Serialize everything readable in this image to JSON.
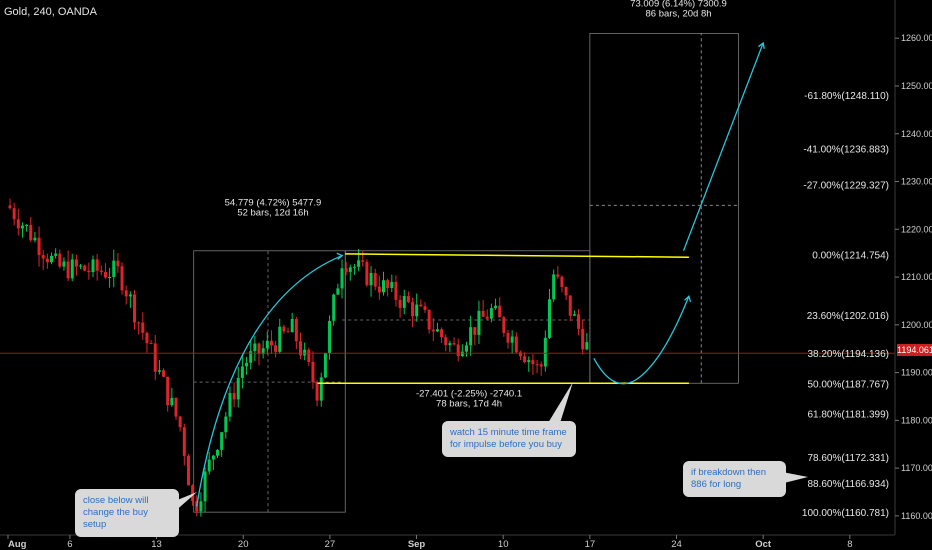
{
  "symbol": "Gold, 240, OANDA",
  "last_price": "1194.061",
  "colors": {
    "background": "#000000",
    "up": "#00c853",
    "down": "#e0232a",
    "fib_lines": "#ffff00",
    "projection": "#26c6da",
    "price_line": "#b71c1c"
  },
  "chart_data": {
    "type": "candlestick",
    "ylim": [
      1156,
      1268
    ],
    "y_ticks": [
      "1260.000",
      "1250.000",
      "1240.000",
      "1230.000",
      "1220.000",
      "1210.000",
      "1200.000",
      "1190.000",
      "1180.000",
      "1170.000",
      "1160.000"
    ],
    "x_ticks": [
      "Aug",
      "6",
      "13",
      "20",
      "27",
      "Sep",
      "10",
      "17",
      "24",
      "Oct",
      "8"
    ],
    "fib_levels": [
      {
        "label": "-61.80%(1248.110)",
        "value": 1248.11
      },
      {
        "label": "-41.00%(1236.883)",
        "value": 1236.883
      },
      {
        "label": "-27.00%(1229.327)",
        "value": 1229.327
      },
      {
        "label": "0.00%(1214.754)",
        "value": 1214.754
      },
      {
        "label": "23.60%(1202.016)",
        "value": 1202.016
      },
      {
        "label": "38.20%(1194.136)",
        "value": 1194.136
      },
      {
        "label": "50.00%(1187.767)",
        "value": 1187.767
      },
      {
        "label": "61.80%(1181.399)",
        "value": 1181.399
      },
      {
        "label": "78.60%(1172.331)",
        "value": 1172.331
      },
      {
        "label": "88.60%(1166.934)",
        "value": 1166.934
      },
      {
        "label": "100.00%(1160.781)",
        "value": 1160.781
      }
    ],
    "measurements": [
      {
        "line1": "54.779 (4.72%) 5477.9",
        "line2": "52 bars, 12d 16h"
      },
      {
        "line1": "-27.401 (-2.25%) -2740.1",
        "line2": "78 bars, 17d 4h"
      },
      {
        "line1": "73.009 (6.14%) 7300.9",
        "line2": "86 bars, 20d 8h"
      }
    ],
    "anchor_points": [
      {
        "date": "Aug 1",
        "price": 1225
      },
      {
        "date": "Aug 5",
        "price": 1212
      },
      {
        "date": "Aug 10",
        "price": 1211
      },
      {
        "date": "Aug 15",
        "price": 1178
      },
      {
        "date": "Aug 16",
        "price": 1161
      },
      {
        "date": "Aug 20",
        "price": 1192
      },
      {
        "date": "Aug 24",
        "price": 1199
      },
      {
        "date": "Aug 26",
        "price": 1186
      },
      {
        "date": "Aug 28",
        "price": 1214
      },
      {
        "date": "Sep 3",
        "price": 1203
      },
      {
        "date": "Sep 6",
        "price": 1195
      },
      {
        "date": "Sep 9",
        "price": 1203
      },
      {
        "date": "Sep 13",
        "price": 1190
      },
      {
        "date": "Sep 14",
        "price": 1211
      },
      {
        "date": "Sep 17",
        "price": 1194
      }
    ]
  },
  "notes": [
    {
      "id": "buy-setup",
      "text": "close below will\nchange the buy setup"
    },
    {
      "id": "impulse",
      "text": "watch 15 minute time frame\nfor impulse before you buy"
    },
    {
      "id": "breakdown",
      "text": "if breakdown then\n886 for long"
    }
  ]
}
